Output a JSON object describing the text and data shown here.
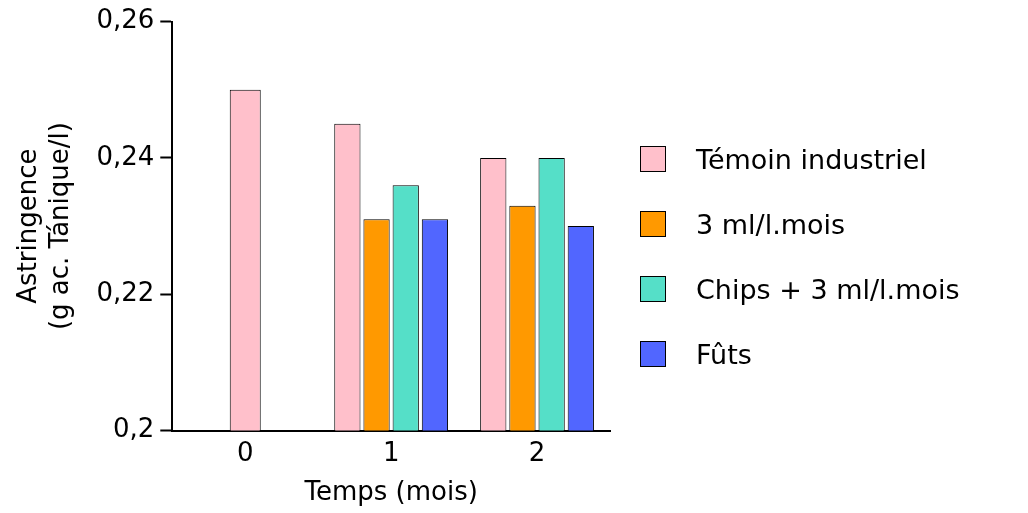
{
  "chart_data": {
    "type": "bar",
    "xlabel": "Temps (mois)",
    "ylabel": "Astringence\n(g ac. Tánique/l)",
    "categories": [
      "0",
      "1",
      "2"
    ],
    "series": [
      {
        "name": "Témoin industriel",
        "color": "#ffc0cb",
        "values": [
          0.25,
          0.245,
          0.24
        ]
      },
      {
        "name": "3 ml/l.mois",
        "color": "#ff9900",
        "values": [
          null,
          0.231,
          0.233
        ]
      },
      {
        "name": "Chips + 3 ml/l.mois",
        "color": "#55dfc8",
        "values": [
          null,
          0.236,
          0.24
        ]
      },
      {
        "name": "Fûts",
        "color": "#5166ff",
        "values": [
          null,
          0.231,
          0.23
        ]
      }
    ],
    "ylim": [
      0.2,
      0.26
    ],
    "yticks": [
      {
        "value": 0.2,
        "label": "0,2"
      },
      {
        "value": 0.22,
        "label": "0,22"
      },
      {
        "value": 0.24,
        "label": "0,24"
      },
      {
        "value": 0.26,
        "label": "0,26"
      }
    ],
    "grid": false,
    "legend": "right"
  }
}
